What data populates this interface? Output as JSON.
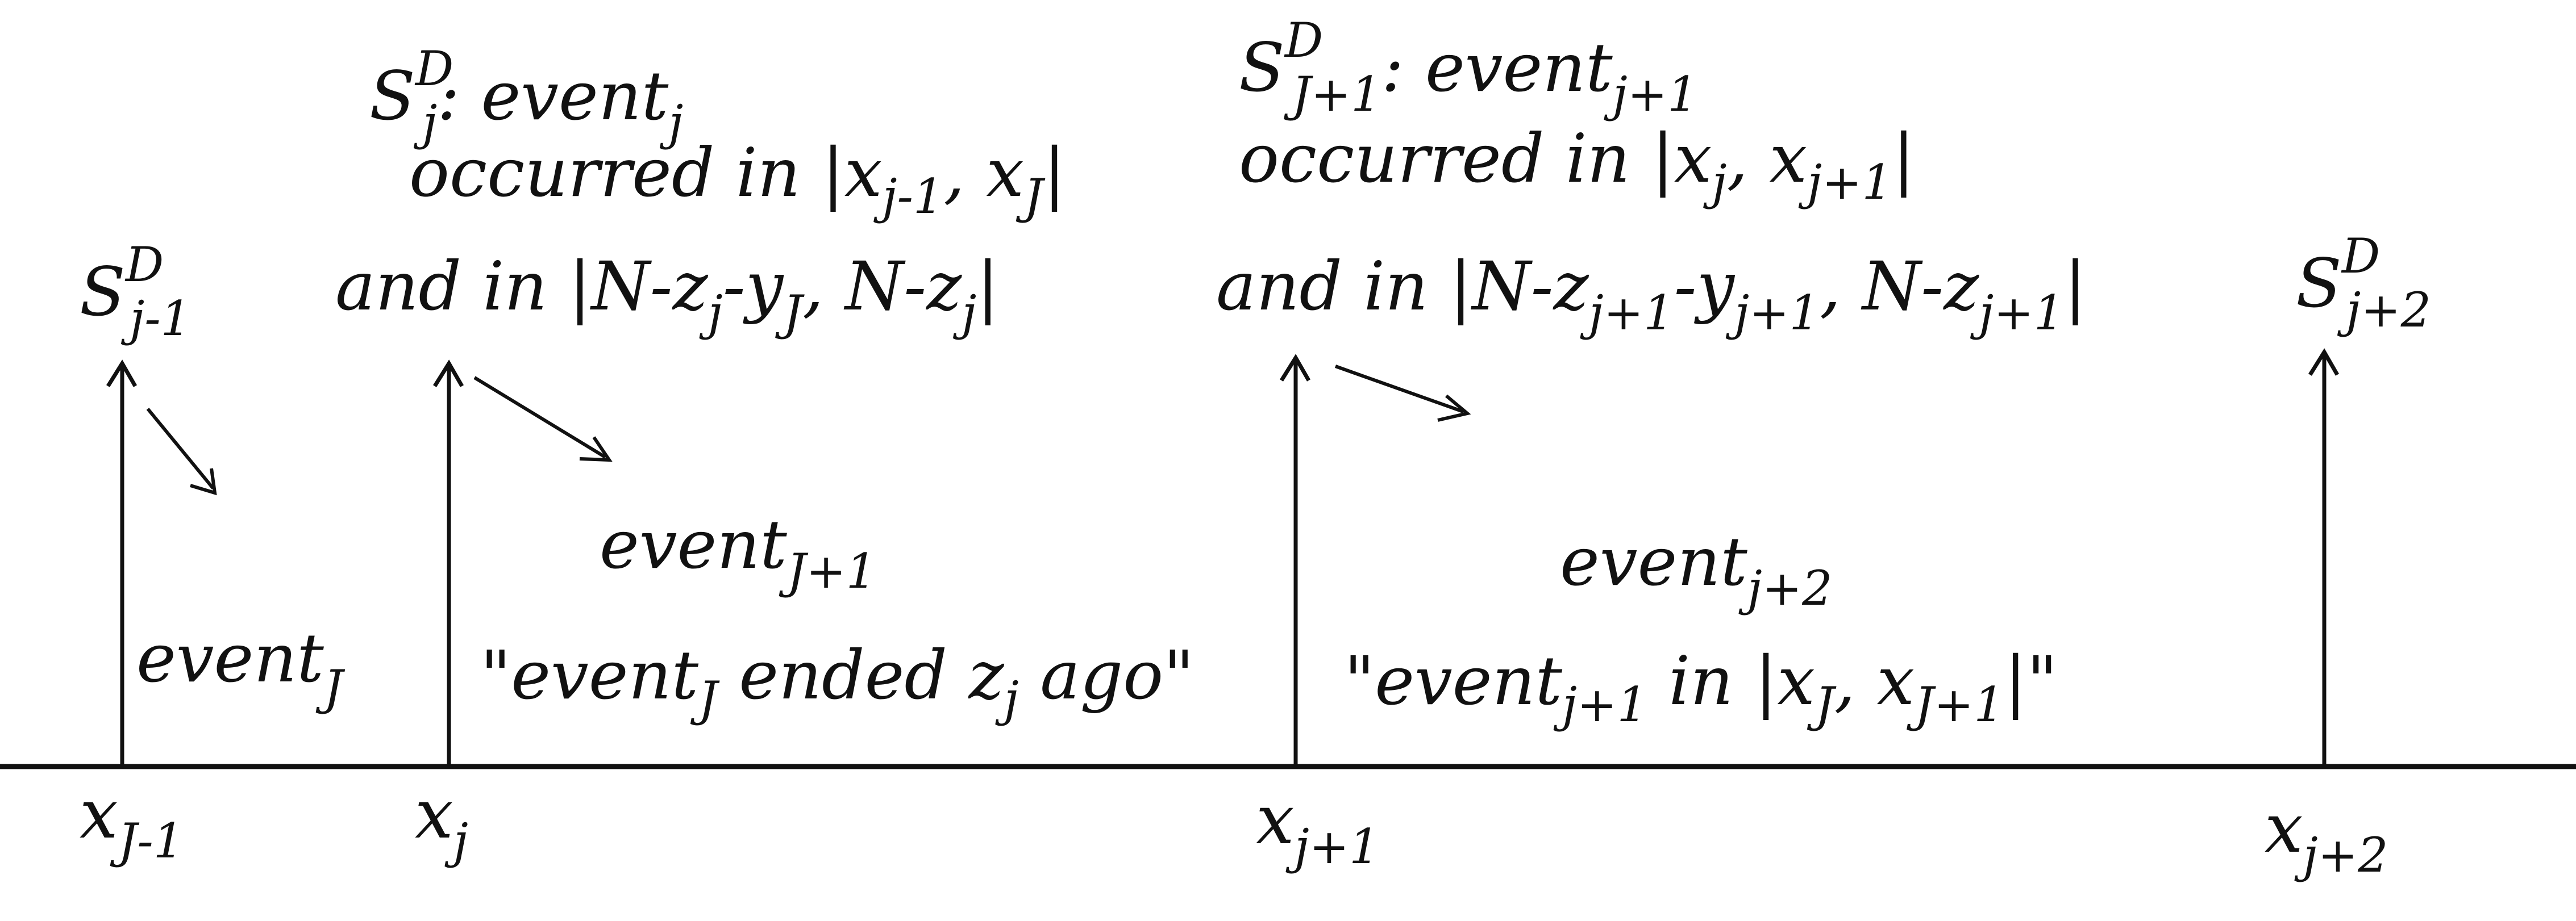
{
  "diagram": {
    "axis_labels": [
      {
        "base": "x",
        "sub": "J-1"
      },
      {
        "base": "x",
        "sub": "j"
      },
      {
        "base": "x",
        "sub": "j+1"
      },
      {
        "base": "x",
        "sub": "j+2"
      }
    ],
    "signal_labels": [
      {
        "base": "S",
        "sup": "D",
        "sub": "j-1"
      },
      {
        "base": "S",
        "sup": "D",
        "sub": "j+2"
      }
    ],
    "annotation_j": {
      "title": {
        "s": "S",
        "sup": "D",
        "sub": "j",
        "text": ": event",
        "event_sub": "j"
      },
      "line2": {
        "pre": "occurred in |x",
        "s1": "j-1",
        "mid": ", x",
        "s2": "J",
        "post": "|"
      },
      "line3": {
        "pre": "and in |N-z",
        "s1": "j",
        "mid1": "-y",
        "s2": "J",
        "mid2": ", N-z",
        "s3": "j",
        "post": "|"
      }
    },
    "annotation_j1": {
      "title": {
        "s": "S",
        "sup": "D",
        "sub": "J+1",
        "text": ": event",
        "event_sub": "j+1"
      },
      "line2": {
        "pre": "occurred in |x",
        "s1": "j",
        "mid": ", x",
        "s2": "j+1",
        "post": "|"
      },
      "line3": {
        "pre": "and in |N-z",
        "s1": "j+1",
        "mid1": "-y",
        "s2": "j+1",
        "mid2": ", N-z",
        "s3": "j+1",
        "post": "|"
      }
    },
    "events": {
      "e1": {
        "base": "event",
        "sub": "J"
      },
      "e2": {
        "base": "event",
        "sub": "J+1"
      },
      "e2_quote": {
        "pre": "\"event",
        "s1": "J",
        "mid": " ended z",
        "s2": "j",
        "post": " ago\""
      },
      "e3": {
        "base": "event",
        "sub": "j+2"
      },
      "e3_quote": {
        "pre": "\"event",
        "s1": "j+1",
        "mid": " in |x",
        "s2": "J",
        "mid2": ", x",
        "s3": "J+1",
        "post": "|\""
      }
    }
  }
}
